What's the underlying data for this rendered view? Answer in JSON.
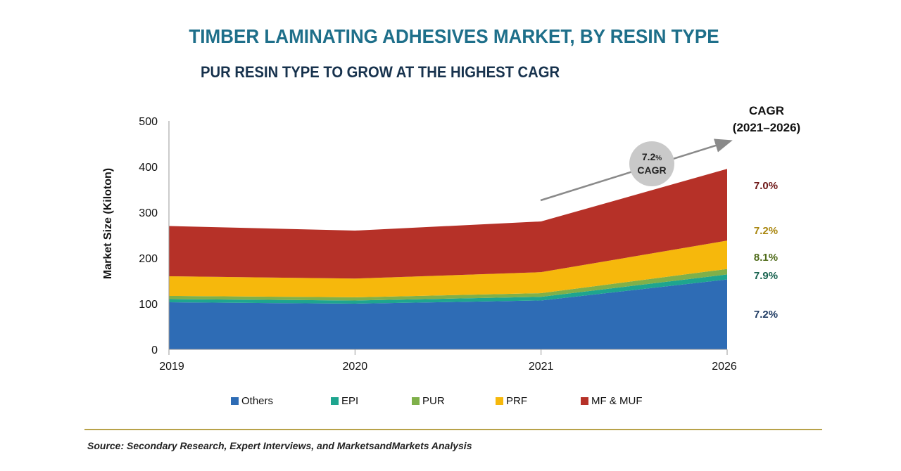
{
  "header": {
    "title": "TIMBER LAMINATING ADHESIVES MARKET, BY RESIN TYPE",
    "subtitle": "PUR RESIN TYPE TO GROW AT THE HIGHEST CAGR"
  },
  "chart_data": {
    "type": "area",
    "stacked": true,
    "categories": [
      "2019",
      "2020",
      "2021",
      "2026"
    ],
    "series": [
      {
        "name": "Others",
        "values": [
          103,
          100,
          107,
          153
        ],
        "color": "#2e6cb5",
        "cagr": "7.2%",
        "cagr_color": "#1f3b63"
      },
      {
        "name": "EPI",
        "values": [
          7,
          7,
          8,
          11
        ],
        "color": "#1ea58f",
        "cagr": "7.9%",
        "cagr_color": "#17624f"
      },
      {
        "name": "PUR",
        "values": [
          7,
          7,
          8,
          12
        ],
        "color": "#7fb04a",
        "cagr": "8.1%",
        "cagr_color": "#4f6b19"
      },
      {
        "name": "PRF",
        "values": [
          43,
          41,
          46,
          62
        ],
        "color": "#f6b80c",
        "cagr": "7.2%",
        "cagr_color": "#a9860e"
      },
      {
        "name": "MF & MUF",
        "values": [
          110,
          105,
          111,
          157
        ],
        "color": "#b63128",
        "cagr": "7.0%",
        "cagr_color": "#6e1717"
      }
    ],
    "ylabel": "Market Size (Kiloton)",
    "xlabel": "",
    "ylim": [
      0,
      500
    ],
    "yticks": [
      "0",
      "100",
      "200",
      "300",
      "400",
      "500"
    ],
    "cagr_header_line1": "CAGR",
    "cagr_header_line2": "(2021–2026)",
    "bubble_line1": "7.2",
    "bubble_pct": "%",
    "bubble_line2": "CAGR"
  },
  "footer": {
    "source": "Source: Secondary Research, Expert Interviews, and MarketsandMarkets Analysis"
  }
}
